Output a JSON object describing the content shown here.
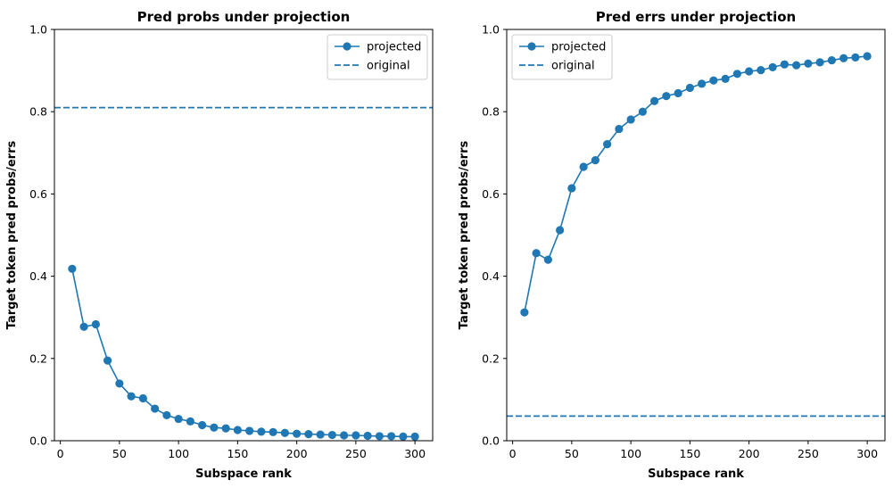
{
  "chart_data": [
    {
      "type": "line",
      "title": "Pred probs under projection",
      "xlabel": "Subspace rank",
      "ylabel": "Target token pred probs/errs",
      "xlim": [
        -5,
        315
      ],
      "ylim": [
        0,
        1.0
      ],
      "xticks": [
        0,
        50,
        100,
        150,
        200,
        250,
        300
      ],
      "yticks": [
        0.0,
        0.2,
        0.4,
        0.6,
        0.8,
        1.0
      ],
      "legend_position": "top-right",
      "series": [
        {
          "name": "projected",
          "style": "line-marker",
          "color": "#1f77b4",
          "x": [
            10,
            20,
            30,
            40,
            50,
            60,
            70,
            80,
            90,
            100,
            110,
            120,
            130,
            140,
            150,
            160,
            170,
            180,
            190,
            200,
            210,
            220,
            230,
            240,
            250,
            260,
            270,
            280,
            290,
            300
          ],
          "values": [
            0.418,
            0.277,
            0.283,
            0.195,
            0.139,
            0.108,
            0.103,
            0.078,
            0.062,
            0.053,
            0.047,
            0.038,
            0.032,
            0.03,
            0.026,
            0.024,
            0.022,
            0.021,
            0.019,
            0.017,
            0.016,
            0.015,
            0.014,
            0.013,
            0.013,
            0.012,
            0.011,
            0.011,
            0.01,
            0.01
          ]
        },
        {
          "name": "original",
          "style": "dashed-hline",
          "color": "#1f77b4",
          "value": 0.81
        }
      ]
    },
    {
      "type": "line",
      "title": "Pred errs under projection",
      "xlabel": "Subspace rank",
      "ylabel": "Target token pred probs/errs",
      "xlim": [
        -5,
        315
      ],
      "ylim": [
        0,
        1.0
      ],
      "xticks": [
        0,
        50,
        100,
        150,
        200,
        250,
        300
      ],
      "yticks": [
        0.0,
        0.2,
        0.4,
        0.6,
        0.8,
        1.0
      ],
      "legend_position": "top-left",
      "series": [
        {
          "name": "projected",
          "style": "line-marker",
          "color": "#1f77b4",
          "x": [
            10,
            20,
            30,
            40,
            50,
            60,
            70,
            80,
            90,
            100,
            110,
            120,
            130,
            140,
            150,
            160,
            170,
            180,
            190,
            200,
            210,
            220,
            230,
            240,
            250,
            260,
            270,
            280,
            290,
            300
          ],
          "values": [
            0.312,
            0.456,
            0.44,
            0.512,
            0.614,
            0.666,
            0.682,
            0.721,
            0.758,
            0.781,
            0.8,
            0.826,
            0.838,
            0.845,
            0.858,
            0.868,
            0.876,
            0.88,
            0.892,
            0.898,
            0.901,
            0.908,
            0.915,
            0.913,
            0.917,
            0.92,
            0.925,
            0.93,
            0.932,
            0.935
          ]
        },
        {
          "name": "original",
          "style": "dashed-hline",
          "color": "#1f77b4",
          "value": 0.06
        }
      ]
    }
  ]
}
